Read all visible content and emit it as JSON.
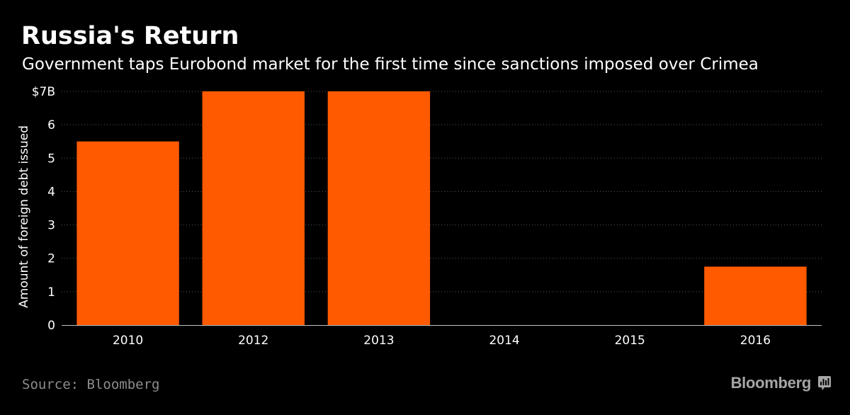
{
  "title": "Russia's Return",
  "subtitle": "Government taps Eurobond market for the first time since sanctions imposed over Crimea",
  "source": "Source: Bloomberg",
  "brand": "Bloomberg",
  "brand_icon": "bloomberg-terminal-icon",
  "colors": {
    "background": "#000000",
    "bar": "#ff5a00",
    "text": "#ffffff",
    "grid": "#5a5a5a",
    "muted": "#8c8c8c"
  },
  "chart_data": {
    "type": "bar",
    "categories": [
      "2010",
      "2012",
      "2013",
      "2014",
      "2015",
      "2016"
    ],
    "values": [
      5.5,
      7,
      7,
      0,
      0,
      1.75
    ],
    "title": "Russia's Return",
    "subtitle": "Government taps Eurobond market for the first time since sanctions imposed over Crimea",
    "xlabel": "",
    "ylabel": "Amount of foreign debt issued",
    "ylim": [
      0,
      7
    ],
    "yticks": [
      0,
      1,
      2,
      3,
      4,
      5,
      6,
      7
    ],
    "ytick_labels": [
      "0",
      "1",
      "2",
      "3",
      "4",
      "5",
      "6",
      "$7B"
    ],
    "grid": true,
    "legend": "none"
  }
}
